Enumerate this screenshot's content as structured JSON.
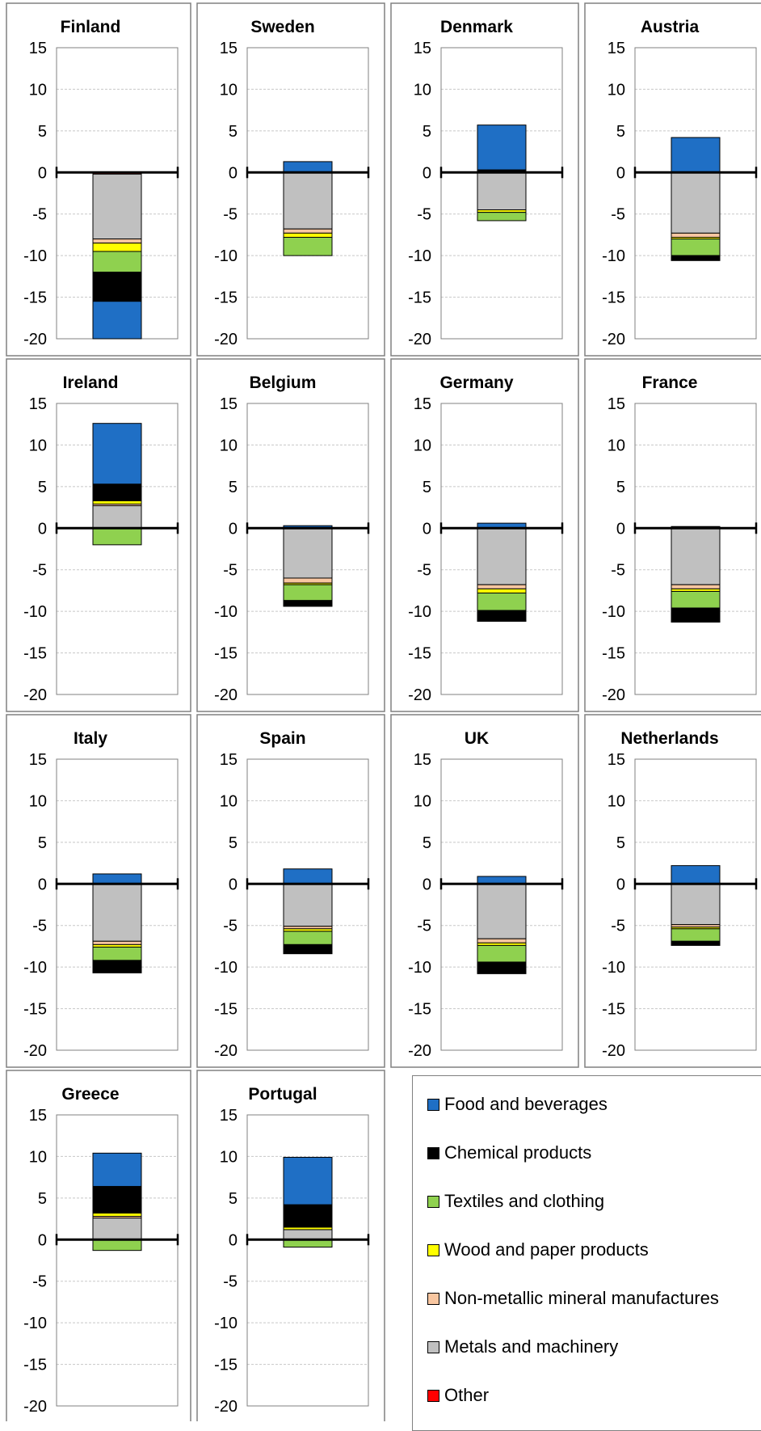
{
  "legend": {
    "food": {
      "label": "Food and beverages",
      "color": "#1f6fc5"
    },
    "chemical": {
      "label": "Chemical products",
      "color": "#000000"
    },
    "textiles": {
      "label": "Textiles and clothing",
      "color": "#8fd14f"
    },
    "wood": {
      "label": "Wood and paper products",
      "color": "#ffff00"
    },
    "nonmetallic": {
      "label": "Non-metallic mineral manufactures",
      "color": "#f8c6a0"
    },
    "metals": {
      "label": "Metals and machinery",
      "color": "#c0c0c0"
    },
    "other": {
      "label": "Other",
      "color": "#ff0000"
    }
  },
  "chart_data": [
    {
      "type": "bar",
      "title": "Finland",
      "ylim": [
        -20,
        15
      ],
      "yticks": [
        15,
        10,
        5,
        0,
        -5,
        -10,
        -15,
        -20
      ],
      "segments": [
        {
          "series": "other",
          "from": 0,
          "to": -0.2
        },
        {
          "series": "metals",
          "from": -0.2,
          "to": -8
        },
        {
          "series": "nonmetallic",
          "from": -8,
          "to": -8.5
        },
        {
          "series": "wood",
          "from": -8.5,
          "to": -9.5
        },
        {
          "series": "textiles",
          "from": -9.5,
          "to": -12
        },
        {
          "series": "chemical",
          "from": -12,
          "to": -15.5
        },
        {
          "series": "food",
          "from": -15.5,
          "to": -20
        }
      ]
    },
    {
      "type": "bar",
      "title": "Sweden",
      "ylim": [
        -20,
        15
      ],
      "yticks": [
        15,
        10,
        5,
        0,
        -5,
        -10,
        -15,
        -20
      ],
      "segments": [
        {
          "series": "food",
          "from": 0,
          "to": 1.3
        },
        {
          "series": "metals",
          "from": 0,
          "to": -6.8
        },
        {
          "series": "nonmetallic",
          "from": -6.8,
          "to": -7.3
        },
        {
          "series": "wood",
          "from": -7.3,
          "to": -7.8
        },
        {
          "series": "textiles",
          "from": -7.8,
          "to": -10
        }
      ]
    },
    {
      "type": "bar",
      "title": "Denmark",
      "ylim": [
        -20,
        15
      ],
      "yticks": [
        15,
        10,
        5,
        0,
        -5,
        -10,
        -15,
        -20
      ],
      "segments": [
        {
          "series": "food",
          "from": 0.3,
          "to": 5.7
        },
        {
          "series": "chemical",
          "from": 0,
          "to": 0.3
        },
        {
          "series": "metals",
          "from": 0,
          "to": -4.5
        },
        {
          "series": "wood",
          "from": -4.5,
          "to": -4.8
        },
        {
          "series": "textiles",
          "from": -4.8,
          "to": -5.8
        }
      ]
    },
    {
      "type": "bar",
      "title": "Austria",
      "ylim": [
        -20,
        15
      ],
      "yticks": [
        15,
        10,
        5,
        0,
        -5,
        -10,
        -15,
        -20
      ],
      "segments": [
        {
          "series": "food",
          "from": 0,
          "to": 4.2
        },
        {
          "series": "metals",
          "from": 0,
          "to": -7.3
        },
        {
          "series": "nonmetallic",
          "from": -7.3,
          "to": -7.8
        },
        {
          "series": "wood",
          "from": -7.8,
          "to": -8
        },
        {
          "series": "textiles",
          "from": -8,
          "to": -10
        },
        {
          "series": "chemical",
          "from": -10,
          "to": -10.6
        }
      ]
    },
    {
      "type": "bar",
      "title": "Ireland",
      "ylim": [
        -20,
        15
      ],
      "yticks": [
        15,
        10,
        5,
        0,
        -5,
        -10,
        -15,
        -20
      ],
      "segments": [
        {
          "series": "metals",
          "from": 0,
          "to": 2.7
        },
        {
          "series": "nonmetallic",
          "from": 2.7,
          "to": 2.9
        },
        {
          "series": "wood",
          "from": 2.9,
          "to": 3.3
        },
        {
          "series": "chemical",
          "from": 3.3,
          "to": 5.3
        },
        {
          "series": "food",
          "from": 5.3,
          "to": 12.6
        },
        {
          "series": "textiles",
          "from": 0,
          "to": -2
        }
      ]
    },
    {
      "type": "bar",
      "title": "Belgium",
      "ylim": [
        -20,
        15
      ],
      "yticks": [
        15,
        10,
        5,
        0,
        -5,
        -10,
        -15,
        -20
      ],
      "segments": [
        {
          "series": "food",
          "from": 0,
          "to": 0.3
        },
        {
          "series": "metals",
          "from": 0,
          "to": -6
        },
        {
          "series": "nonmetallic",
          "from": -6,
          "to": -6.6
        },
        {
          "series": "wood",
          "from": -6.6,
          "to": -6.8
        },
        {
          "series": "textiles",
          "from": -6.8,
          "to": -8.7
        },
        {
          "series": "chemical",
          "from": -8.7,
          "to": -9.4
        }
      ]
    },
    {
      "type": "bar",
      "title": "Germany",
      "ylim": [
        -20,
        15
      ],
      "yticks": [
        15,
        10,
        5,
        0,
        -5,
        -10,
        -15,
        -20
      ],
      "segments": [
        {
          "series": "food",
          "from": 0,
          "to": 0.6
        },
        {
          "series": "metals",
          "from": 0,
          "to": -6.8
        },
        {
          "series": "nonmetallic",
          "from": -6.8,
          "to": -7.3
        },
        {
          "series": "wood",
          "from": -7.3,
          "to": -7.8
        },
        {
          "series": "textiles",
          "from": -7.8,
          "to": -9.9
        },
        {
          "series": "chemical",
          "from": -9.9,
          "to": -11.2
        }
      ]
    },
    {
      "type": "bar",
      "title": "France",
      "ylim": [
        -20,
        15
      ],
      "yticks": [
        15,
        10,
        5,
        0,
        -5,
        -10,
        -15,
        -20
      ],
      "segments": [
        {
          "series": "chemical",
          "from": 0,
          "to": 0.2
        },
        {
          "series": "metals",
          "from": 0,
          "to": -6.8
        },
        {
          "series": "nonmetallic",
          "from": -6.8,
          "to": -7.3
        },
        {
          "series": "wood",
          "from": -7.3,
          "to": -7.6
        },
        {
          "series": "textiles",
          "from": -7.6,
          "to": -9.6
        },
        {
          "series": "chemical",
          "from": -9.6,
          "to": -11.3
        }
      ]
    },
    {
      "type": "bar",
      "title": "Italy",
      "ylim": [
        -20,
        15
      ],
      "yticks": [
        15,
        10,
        5,
        0,
        -5,
        -10,
        -15,
        -20
      ],
      "segments": [
        {
          "series": "food",
          "from": 0,
          "to": 1.2
        },
        {
          "series": "metals",
          "from": 0,
          "to": -6.9
        },
        {
          "series": "nonmetallic",
          "from": -6.9,
          "to": -7.3
        },
        {
          "series": "wood",
          "from": -7.3,
          "to": -7.6
        },
        {
          "series": "textiles",
          "from": -7.6,
          "to": -9.2
        },
        {
          "series": "chemical",
          "from": -9.2,
          "to": -10.7
        }
      ]
    },
    {
      "type": "bar",
      "title": "Spain",
      "ylim": [
        -20,
        15
      ],
      "yticks": [
        15,
        10,
        5,
        0,
        -5,
        -10,
        -15,
        -20
      ],
      "segments": [
        {
          "series": "food",
          "from": 0,
          "to": 1.8
        },
        {
          "series": "metals",
          "from": 0,
          "to": -5.1
        },
        {
          "series": "nonmetallic",
          "from": -5.1,
          "to": -5.4
        },
        {
          "series": "wood",
          "from": -5.4,
          "to": -5.7
        },
        {
          "series": "textiles",
          "from": -5.7,
          "to": -7.3
        },
        {
          "series": "chemical",
          "from": -7.3,
          "to": -8.4
        }
      ]
    },
    {
      "type": "bar",
      "title": "UK",
      "ylim": [
        -20,
        15
      ],
      "yticks": [
        15,
        10,
        5,
        0,
        -5,
        -10,
        -15,
        -20
      ],
      "segments": [
        {
          "series": "food",
          "from": 0,
          "to": 0.9
        },
        {
          "series": "metals",
          "from": 0,
          "to": -6.6
        },
        {
          "series": "nonmetallic",
          "from": -6.6,
          "to": -7.1
        },
        {
          "series": "wood",
          "from": -7.1,
          "to": -7.4
        },
        {
          "series": "textiles",
          "from": -7.4,
          "to": -9.4
        },
        {
          "series": "chemical",
          "from": -9.4,
          "to": -10.8
        }
      ]
    },
    {
      "type": "bar",
      "title": "Netherlands",
      "ylim": [
        -20,
        15
      ],
      "yticks": [
        15,
        10,
        5,
        0,
        -5,
        -10,
        -15,
        -20
      ],
      "segments": [
        {
          "series": "food",
          "from": 0,
          "to": 2.2
        },
        {
          "series": "metals",
          "from": 0,
          "to": -4.9
        },
        {
          "series": "nonmetallic",
          "from": -4.9,
          "to": -5.2
        },
        {
          "series": "wood",
          "from": -5.2,
          "to": -5.4
        },
        {
          "series": "textiles",
          "from": -5.4,
          "to": -6.9
        },
        {
          "series": "chemical",
          "from": -6.9,
          "to": -7.4
        }
      ]
    },
    {
      "type": "bar",
      "title": "Greece",
      "ylim": [
        -20,
        15
      ],
      "yticks": [
        15,
        10,
        5,
        0,
        -5,
        -10,
        -15,
        -20
      ],
      "segments": [
        {
          "series": "metals",
          "from": 0,
          "to": 2.6
        },
        {
          "series": "nonmetallic",
          "from": 2.6,
          "to": 2.8
        },
        {
          "series": "wood",
          "from": 2.8,
          "to": 3.2
        },
        {
          "series": "chemical",
          "from": 3.2,
          "to": 6.4
        },
        {
          "series": "food",
          "from": 6.4,
          "to": 10.4
        },
        {
          "series": "textiles",
          "from": 0,
          "to": -1.3
        }
      ]
    },
    {
      "type": "bar",
      "title": "Portugal",
      "ylim": [
        -20,
        15
      ],
      "yticks": [
        15,
        10,
        5,
        0,
        -5,
        -10,
        -15,
        -20
      ],
      "segments": [
        {
          "series": "metals",
          "from": 0,
          "to": 1.2
        },
        {
          "series": "wood",
          "from": 1.2,
          "to": 1.5
        },
        {
          "series": "chemical",
          "from": 1.5,
          "to": 4.2
        },
        {
          "series": "food",
          "from": 4.2,
          "to": 9.9
        },
        {
          "series": "textiles",
          "from": 0,
          "to": -0.9
        }
      ]
    }
  ]
}
